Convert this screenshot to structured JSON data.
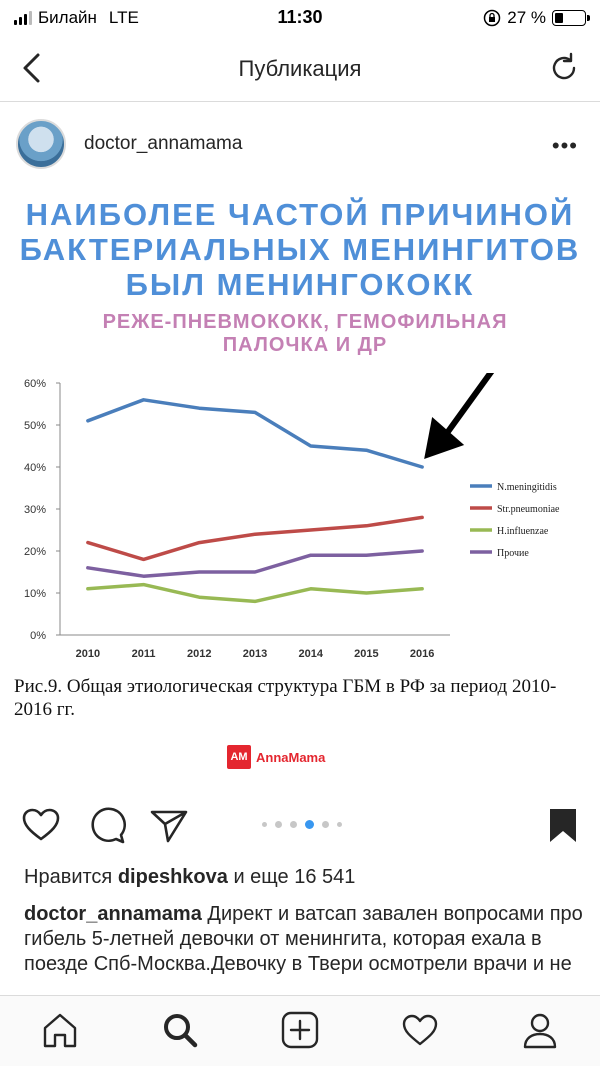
{
  "status_bar": {
    "carrier": "Билайн",
    "network": "LTE",
    "time": "11:30",
    "battery": "27 %",
    "battery_level": 0.27
  },
  "header": {
    "title": "Публикация"
  },
  "post": {
    "username": "doctor_annamama",
    "more_icon": "more-dots-icon"
  },
  "image": {
    "headline_lines": [
      "НАИБОЛЕЕ ЧАСТОЙ ПРИЧИНОЙ",
      "БАКТЕРИАЛЬНЫХ МЕНИНГИТОВ",
      "БЫЛ МЕНИНГОКОКК"
    ],
    "subhead_lines": [
      "РЕЖЕ-ПНЕВМОКОКК, ГЕМОФИЛЬНАЯ",
      "ПАЛОЧКА И ДР"
    ],
    "caption": "Рис.9. Общая этиологическая структура ГБМ в РФ за период 2010-2016 гг.",
    "logo_mark": "AM",
    "logo_name": "AnnaMama",
    "colors": {
      "headline": "#4f8fd8",
      "subhead": "#c480b4",
      "logo": "#e4262f"
    }
  },
  "chart_data": {
    "type": "line",
    "title": "",
    "xlabel": "",
    "ylabel": "",
    "categories": [
      "2010",
      "2011",
      "2012",
      "2013",
      "2014",
      "2015",
      "2016"
    ],
    "ylim": [
      0,
      60
    ],
    "yticks": [
      "0%",
      "10%",
      "20%",
      "30%",
      "40%",
      "50%",
      "60%"
    ],
    "grid": false,
    "legend_position": "right",
    "series": [
      {
        "name": "N.meningitidis",
        "color": "#4a7ebb",
        "values": [
          51,
          56,
          54,
          53,
          45,
          44,
          40
        ]
      },
      {
        "name": "Str.pneumoniae",
        "color": "#be4b48",
        "values": [
          22,
          18,
          22,
          24,
          25,
          26,
          28
        ]
      },
      {
        "name": "H.influenzae",
        "color": "#98b954",
        "values": [
          11,
          12,
          9,
          8,
          11,
          10,
          11
        ]
      },
      {
        "name": "Прочие",
        "color": "#7d60a0",
        "values": [
          16,
          14,
          15,
          15,
          19,
          19,
          20
        ]
      }
    ],
    "annotation": "arrow pointing to 2016 N.meningitidis value"
  },
  "actions": {
    "carousel_count": 6,
    "carousel_active": 4
  },
  "likes": {
    "prefix": "Нравится",
    "user": "dipeshkova",
    "suffix": "и еще 16 541"
  },
  "description": {
    "user": "doctor_annamama",
    "text": "Директ и ватсап завален вопросами про гибель 5-летней девочки от менингита, которая ехала в поезде Спб-Москва.Девочку в Твери осмотрели врачи и не"
  }
}
